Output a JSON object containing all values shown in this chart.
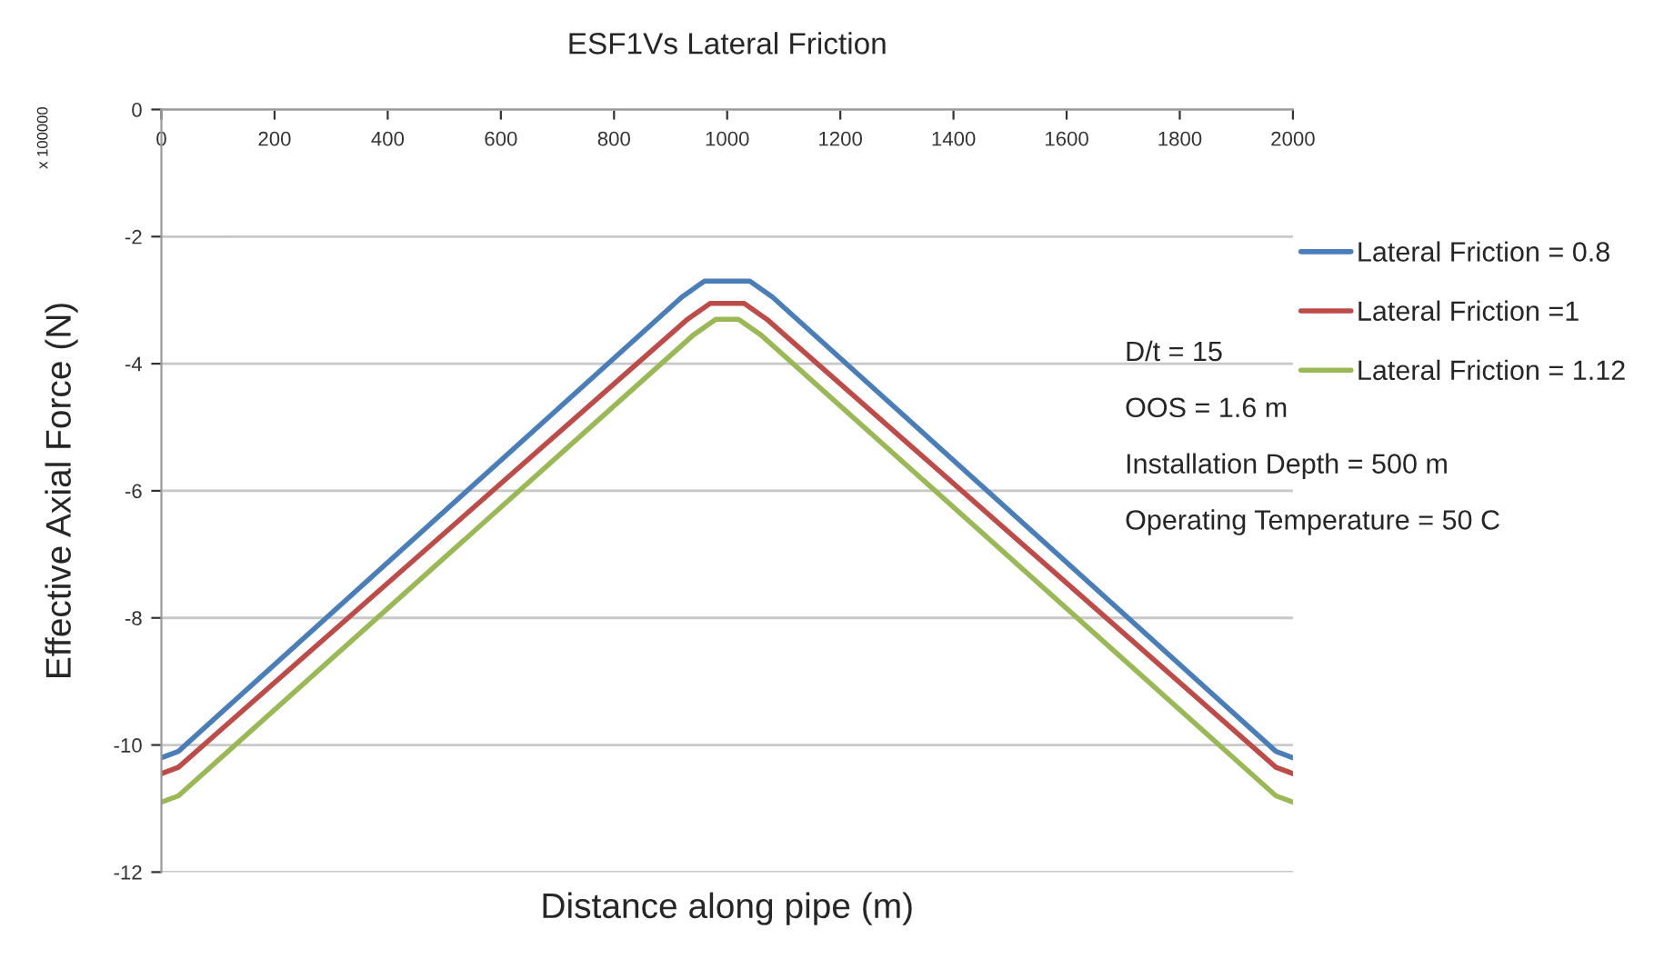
{
  "chart_data": {
    "type": "line",
    "title": "ESF1Vs Lateral Friction",
    "xlabel": "Distance along pipe (m)",
    "ylabel": "Effective Axial Force (N)",
    "annotations": [
      "x 100000",
      "D/t = 15",
      "OOS = 1.6 m",
      "Installation Depth = 500 m",
      "Operating Temperature = 50 C"
    ],
    "xlim": [
      0,
      2000
    ],
    "xticks": [
      0,
      200,
      400,
      600,
      800,
      1000,
      1200,
      1400,
      1600,
      1800,
      2000
    ],
    "ylim": [
      -12,
      0
    ],
    "yticks": [
      -12,
      -10,
      -8,
      -6,
      -4,
      -2,
      0
    ],
    "grid": "y",
    "legend": "top right",
    "marker": "none",
    "line_style": "solid",
    "series": [
      {
        "name": "Lateral Friction = 0.8",
        "color": "#4a7ebb",
        "x": [
          0,
          30,
          920,
          960,
          1040,
          1080,
          1970,
          2000
        ],
        "values": [
          -10.2,
          -10.1,
          -2.95,
          -2.7,
          -2.7,
          -2.95,
          -10.1,
          -10.2
        ]
      },
      {
        "name": "Lateral Friction =1",
        "color": "#be4b48",
        "x": [
          0,
          30,
          930,
          970,
          1030,
          1070,
          1970,
          2000
        ],
        "values": [
          -10.45,
          -10.35,
          -3.3,
          -3.05,
          -3.05,
          -3.3,
          -10.35,
          -10.45
        ]
      },
      {
        "name": "Lateral Friction = 1.12",
        "color": "#98b954",
        "x": [
          0,
          30,
          940,
          980,
          1020,
          1060,
          1970,
          2000
        ],
        "values": [
          -10.9,
          -10.8,
          -3.55,
          -3.3,
          -3.3,
          -3.55,
          -10.8,
          -10.9
        ]
      }
    ]
  }
}
